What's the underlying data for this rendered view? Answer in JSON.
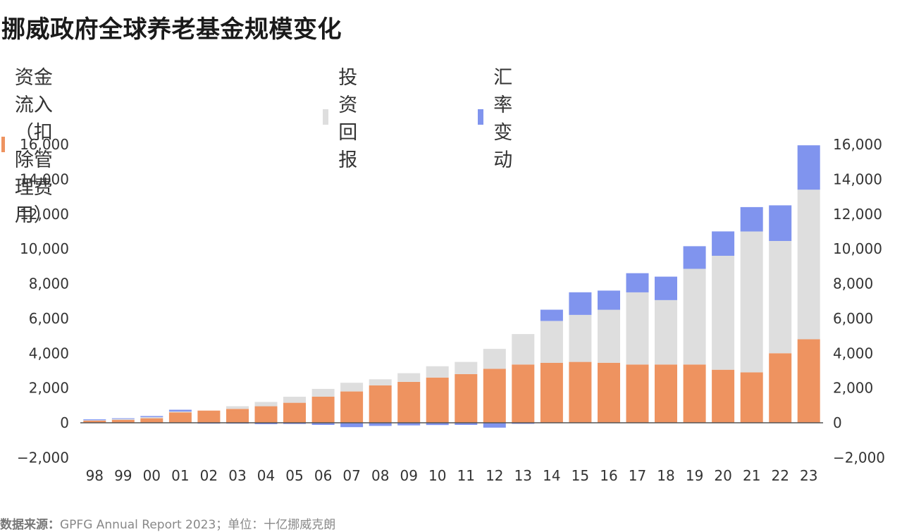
{
  "title": "挪威政府全球养老基金规模变化",
  "legend": [
    {
      "label": "资金流入（扣除管理费用）",
      "color": "#ee9360"
    },
    {
      "label": "投资回报",
      "color": "#dedede"
    },
    {
      "label": "汇率变动",
      "color": "#8094ee"
    }
  ],
  "source_label": "数据来源：",
  "source_text": "GPFG Annual Report 2023；单位：十亿挪威克朗",
  "chart_data": {
    "type": "bar",
    "stacked": true,
    "categories": [
      "98",
      "99",
      "00",
      "01",
      "02",
      "03",
      "04",
      "05",
      "06",
      "07",
      "08",
      "09",
      "10",
      "11",
      "12",
      "13",
      "14",
      "15",
      "16",
      "17",
      "18",
      "19",
      "20",
      "21",
      "22",
      "23"
    ],
    "series": [
      {
        "name": "资金流入（扣除管理费用）",
        "color": "#ee9360",
        "values": [
          120,
          170,
          260,
          600,
          700,
          800,
          950,
          1150,
          1500,
          1800,
          2150,
          2350,
          2600,
          2800,
          3100,
          3350,
          3450,
          3500,
          3450,
          3350,
          3350,
          3350,
          3050,
          2900,
          4000,
          4800
        ]
      },
      {
        "name": "投资回报",
        "color": "#dedede",
        "values": [
          30,
          50,
          70,
          50,
          0,
          150,
          250,
          350,
          450,
          500,
          350,
          500,
          650,
          700,
          1150,
          1750,
          2400,
          2700,
          3050,
          4150,
          3700,
          5500,
          6550,
          8100,
          6450,
          8600
        ]
      },
      {
        "name": "汇率变动",
        "color": "#8094ee",
        "values": [
          50,
          40,
          60,
          100,
          -50,
          -50,
          -80,
          -70,
          -120,
          -250,
          -180,
          -150,
          -130,
          -120,
          -280,
          -60,
          650,
          1300,
          1100,
          1100,
          1350,
          1300,
          1400,
          1400,
          2050,
          2550
        ]
      }
    ],
    "ylim": [
      -2000,
      16000
    ],
    "yticks": [
      -2000,
      0,
      2000,
      4000,
      6000,
      8000,
      10000,
      12000,
      14000,
      16000
    ],
    "ytick_labels": [
      "−2,000",
      "0",
      "2,000",
      "4,000",
      "6,000",
      "8,000",
      "10,000",
      "12,000",
      "14,000",
      "16,000"
    ],
    "dual_y_axis": true,
    "grid": false,
    "legend_position": "top-left"
  }
}
